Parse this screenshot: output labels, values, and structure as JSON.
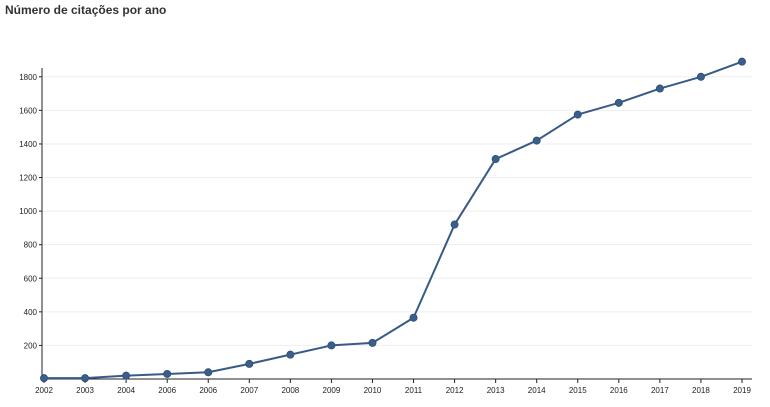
{
  "title": "Número de citações por ano",
  "colors": {
    "line": "#385b86",
    "point": "#3b5f8a",
    "grid": "#eeeeee",
    "axis": "#222222"
  },
  "chart_data": {
    "type": "line",
    "title": "Número de citações por ano",
    "xlabel": "",
    "ylabel": "",
    "grid": true,
    "ylim": [
      0,
      1900
    ],
    "yticks": [
      200,
      400,
      600,
      800,
      1000,
      1200,
      1400,
      1600,
      1800
    ],
    "categories": [
      "2002",
      "2003",
      "2004",
      "2006",
      "2006",
      "2007",
      "2008",
      "2009",
      "2010",
      "2011",
      "2012",
      "2013",
      "2014",
      "2015",
      "2016",
      "2017",
      "2018",
      "2019"
    ],
    "values": [
      5,
      5,
      20,
      30,
      40,
      90,
      145,
      200,
      215,
      365,
      920,
      1310,
      1420,
      1575,
      1645,
      1730,
      1800,
      1890
    ]
  }
}
